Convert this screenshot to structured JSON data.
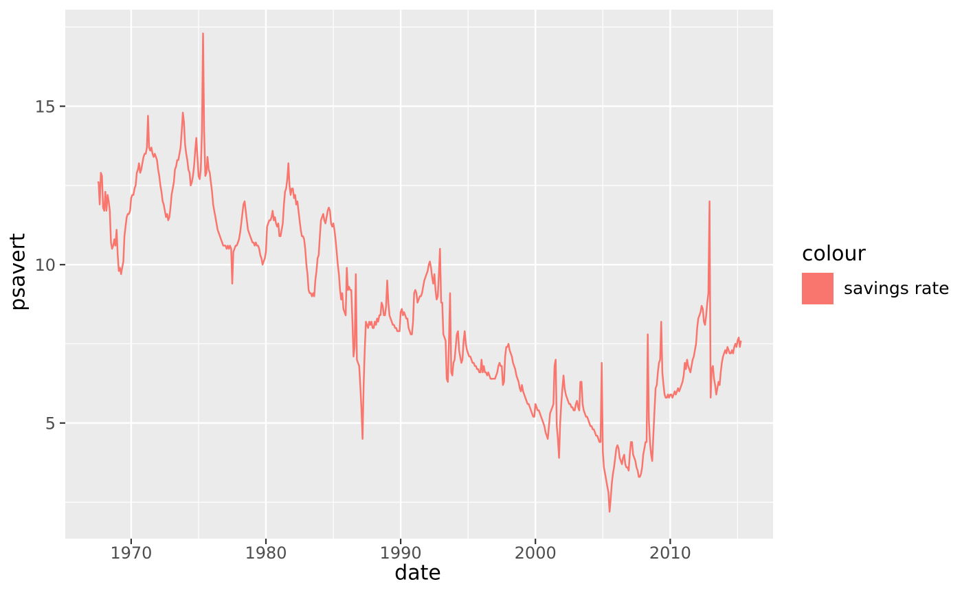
{
  "figure": {
    "background": "#FFFFFF"
  },
  "legend": {
    "title": "colour",
    "entries": [
      {
        "label": "savings rate",
        "color": "#F8766D"
      }
    ]
  },
  "chart_data": {
    "type": "line",
    "title": "",
    "xlabel": "date",
    "ylabel": "psavert",
    "legend_position": "right",
    "grid": true,
    "panel_background": "#EBEBEB",
    "grid_color": "#FFFFFF",
    "tick_color": "#333333",
    "tick_label_color": "#4D4D4D",
    "x_range": [
      1965.11,
      2017.63
    ],
    "y_range": [
      1.35,
      18.05
    ],
    "x_ticks": {
      "major": [
        1970,
        1980,
        1990,
        2000,
        2010
      ],
      "minor": [
        1975,
        1985,
        1995,
        2005,
        2015
      ]
    },
    "y_ticks": {
      "major": [
        5,
        10,
        15
      ],
      "minor": [
        2.5,
        7.5,
        12.5,
        17.5
      ]
    },
    "series": [
      {
        "name": "savings rate",
        "color": "#F8766D",
        "x_start_year": 1967.5,
        "x_step_years": 0.0833333,
        "values": [
          12.6,
          12.6,
          11.9,
          12.9,
          12.8,
          11.8,
          11.7,
          12.3,
          11.7,
          12.2,
          12.0,
          11.7,
          10.7,
          10.5,
          10.6,
          10.8,
          10.6,
          11.1,
          10.3,
          9.8,
          9.9,
          9.7,
          9.9,
          10.1,
          10.9,
          11.2,
          11.5,
          11.6,
          11.6,
          11.7,
          12.1,
          12.2,
          12.2,
          12.4,
          12.5,
          12.9,
          13.0,
          13.2,
          12.9,
          13.0,
          13.2,
          13.4,
          13.5,
          13.5,
          13.7,
          14.7,
          13.7,
          13.6,
          13.7,
          13.5,
          13.4,
          13.5,
          13.4,
          13.3,
          13.0,
          12.8,
          12.5,
          12.3,
          12.0,
          11.9,
          11.7,
          11.5,
          11.6,
          11.4,
          11.5,
          11.8,
          12.2,
          12.4,
          12.6,
          13.0,
          13.1,
          13.3,
          13.3,
          13.5,
          13.7,
          14.2,
          14.8,
          14.5,
          13.8,
          13.5,
          13.3,
          13.0,
          12.9,
          12.5,
          12.6,
          12.8,
          13.1,
          13.6,
          14.0,
          13.4,
          12.8,
          12.7,
          13.0,
          14.2,
          17.3,
          14.2,
          12.8,
          12.9,
          13.4,
          13.0,
          12.9,
          12.6,
          12.3,
          11.9,
          11.7,
          11.5,
          11.3,
          11.1,
          11.0,
          10.9,
          10.8,
          10.7,
          10.6,
          10.6,
          10.6,
          10.5,
          10.6,
          10.5,
          10.6,
          10.5,
          9.4,
          10.4,
          10.5,
          10.6,
          10.6,
          10.7,
          10.8,
          11.0,
          11.3,
          11.6,
          11.9,
          12.0,
          11.7,
          11.4,
          11.1,
          11.0,
          10.9,
          10.8,
          10.7,
          10.7,
          10.6,
          10.7,
          10.6,
          10.6,
          10.5,
          10.3,
          10.2,
          10.0,
          10.1,
          10.2,
          10.4,
          11.2,
          11.3,
          11.4,
          11.4,
          11.5,
          11.7,
          11.4,
          11.5,
          11.3,
          11.2,
          11.3,
          10.9,
          10.9,
          11.1,
          11.3,
          11.9,
          12.3,
          12.4,
          12.7,
          13.2,
          12.5,
          12.2,
          12.4,
          12.4,
          12.1,
          12.2,
          11.9,
          12.0,
          11.7,
          11.4,
          11.1,
          10.9,
          10.9,
          10.8,
          10.5,
          10.0,
          9.7,
          9.2,
          9.1,
          9.1,
          9.0,
          9.1,
          9.0,
          9.5,
          9.8,
          10.2,
          10.3,
          10.9,
          11.4,
          11.5,
          11.6,
          11.4,
          11.3,
          11.5,
          11.7,
          11.8,
          11.7,
          11.3,
          11.2,
          11.3,
          11.1,
          10.8,
          10.4,
          10.0,
          9.7,
          9.2,
          8.9,
          9.1,
          8.6,
          8.5,
          8.4,
          9.9,
          9.2,
          9.3,
          9.2,
          9.2,
          8.2,
          7.1,
          7.4,
          9.7,
          7.0,
          6.9,
          6.8,
          6.2,
          5.5,
          4.5,
          6.2,
          7.3,
          8.2,
          8.1,
          8.0,
          8.2,
          8.1,
          8.2,
          8.0,
          8.0,
          8.2,
          8.1,
          8.3,
          8.2,
          8.4,
          8.4,
          8.8,
          8.7,
          8.4,
          8.4,
          8.7,
          9.5,
          8.8,
          8.4,
          8.3,
          8.2,
          8.1,
          8.1,
          8.0,
          8.0,
          7.9,
          7.9,
          7.9,
          8.5,
          8.6,
          8.4,
          8.5,
          8.4,
          8.3,
          8.3,
          8.0,
          7.9,
          7.8,
          7.8,
          8.2,
          9.1,
          9.2,
          9.1,
          8.8,
          8.9,
          9.0,
          9.0,
          9.1,
          9.3,
          9.5,
          9.6,
          9.7,
          9.8,
          10.0,
          10.1,
          9.9,
          9.6,
          9.4,
          9.7,
          9.2,
          8.9,
          9.0,
          9.7,
          10.5,
          8.8,
          8.8,
          7.8,
          7.7,
          7.6,
          6.4,
          6.3,
          7.6,
          9.1,
          6.6,
          6.5,
          6.9,
          7.0,
          7.4,
          7.8,
          7.9,
          7.3,
          7.1,
          6.9,
          7.0,
          7.6,
          7.9,
          7.5,
          7.3,
          7.2,
          7.1,
          7.1,
          7.0,
          6.9,
          6.9,
          6.8,
          6.8,
          6.7,
          6.7,
          6.6,
          6.6,
          7.0,
          6.6,
          6.8,
          6.6,
          6.6,
          6.5,
          6.6,
          6.5,
          6.4,
          6.4,
          6.4,
          6.4,
          6.4,
          6.5,
          6.6,
          6.8,
          6.9,
          6.8,
          6.8,
          6.2,
          6.3,
          7.1,
          7.4,
          7.4,
          7.5,
          7.3,
          7.2,
          7.1,
          6.9,
          6.8,
          6.7,
          6.5,
          6.4,
          6.3,
          6.1,
          6.0,
          6.2,
          6.0,
          5.9,
          5.8,
          5.7,
          5.6,
          5.6,
          5.5,
          5.4,
          5.3,
          5.2,
          5.2,
          5.6,
          5.5,
          5.4,
          5.4,
          5.3,
          5.2,
          5.1,
          5.0,
          4.9,
          4.7,
          4.6,
          4.5,
          4.9,
          5.3,
          5.4,
          5.5,
          5.6,
          6.8,
          7.0,
          4.9,
          4.5,
          3.9,
          5.0,
          5.6,
          6.1,
          6.5,
          6.1,
          5.9,
          5.8,
          5.7,
          5.6,
          5.6,
          5.5,
          5.5,
          5.4,
          5.4,
          5.6,
          5.7,
          5.5,
          5.4,
          6.3,
          6.3,
          5.6,
          5.4,
          5.3,
          5.2,
          5.2,
          5.1,
          5.0,
          4.9,
          4.9,
          4.8,
          4.8,
          4.7,
          4.6,
          4.6,
          4.5,
          4.4,
          4.4,
          6.9,
          4.1,
          3.6,
          3.4,
          3.2,
          3.0,
          2.8,
          2.2,
          2.6,
          3.1,
          3.4,
          3.6,
          3.9,
          4.2,
          4.3,
          4.2,
          3.9,
          3.8,
          3.7,
          3.9,
          4.0,
          3.7,
          3.6,
          3.6,
          3.5,
          4.0,
          4.4,
          4.4,
          4.0,
          3.9,
          3.8,
          3.6,
          3.5,
          3.3,
          3.3,
          3.4,
          3.6,
          4.0,
          4.2,
          4.4,
          4.4,
          7.8,
          5.1,
          4.4,
          4.0,
          3.8,
          4.6,
          5.4,
          6.1,
          6.2,
          6.6,
          6.9,
          7.0,
          8.2,
          6.6,
          6.2,
          5.9,
          5.8,
          5.8,
          5.9,
          5.8,
          5.9,
          5.9,
          5.8,
          5.9,
          6.0,
          5.9,
          6.0,
          6.1,
          6.0,
          6.1,
          6.2,
          6.3,
          6.5,
          6.9,
          6.7,
          7.0,
          6.8,
          6.7,
          6.6,
          6.8,
          7.0,
          7.1,
          7.3,
          7.5,
          8.0,
          8.3,
          8.4,
          8.5,
          8.7,
          8.6,
          8.2,
          8.1,
          8.4,
          8.8,
          9.1,
          12.0,
          5.8,
          6.7,
          6.8,
          6.4,
          6.2,
          5.9,
          6.1,
          6.3,
          6.2,
          6.6,
          6.9,
          7.1,
          7.2,
          7.3,
          7.2,
          7.4,
          7.3,
          7.2,
          7.2,
          7.3,
          7.2,
          7.4,
          7.5,
          7.4,
          7.6,
          7.7,
          7.4,
          7.6
        ]
      }
    ]
  }
}
